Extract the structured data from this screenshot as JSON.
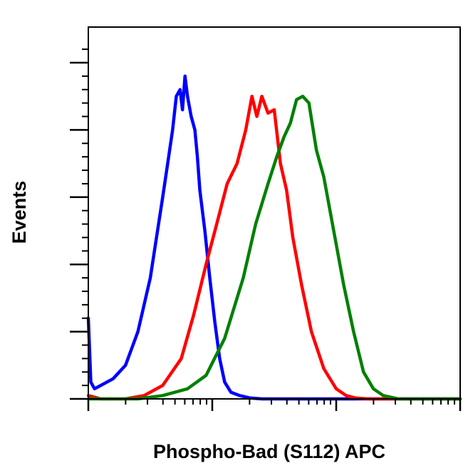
{
  "chart_data": {
    "type": "line",
    "title": "",
    "xlabel": "Phospho-Bad (S112) APC",
    "ylabel": "Events",
    "x_scale": "log",
    "x_decades": 3,
    "xlim": [
      0,
      3
    ],
    "ylim": [
      0,
      100
    ],
    "tick_labels_shown": false,
    "grid": false,
    "legend": "none",
    "series": [
      {
        "color": "#0000ff",
        "x": [
          0.0,
          0.02,
          0.05,
          0.1,
          0.2,
          0.3,
          0.4,
          0.5,
          0.55,
          0.6,
          0.64,
          0.68,
          0.71,
          0.74,
          0.76,
          0.78,
          0.8,
          0.83,
          0.86,
          0.88,
          0.9,
          0.94,
          0.98,
          1.02,
          1.06,
          1.1,
          1.15,
          1.22,
          1.3,
          1.4,
          3.0
        ],
        "y": [
          24,
          5,
          3,
          4,
          6,
          10,
          20,
          36,
          48,
          60,
          70,
          80,
          90,
          92,
          86,
          96,
          90,
          84,
          80,
          72,
          62,
          50,
          36,
          23,
          12,
          5,
          2,
          1,
          0.3,
          0,
          0
        ]
      },
      {
        "color": "#ff0000",
        "x": [
          0.0,
          0.1,
          0.3,
          0.45,
          0.6,
          0.75,
          0.85,
          0.95,
          1.05,
          1.12,
          1.2,
          1.27,
          1.32,
          1.36,
          1.4,
          1.45,
          1.5,
          1.55,
          1.6,
          1.65,
          1.72,
          1.8,
          1.9,
          2.0,
          2.08,
          2.15,
          2.25,
          3.0
        ],
        "y": [
          1,
          0,
          0,
          1,
          4,
          12,
          25,
          40,
          54,
          64,
          70,
          80,
          90,
          84,
          90,
          85,
          86,
          70,
          62,
          48,
          34,
          20,
          9,
          3,
          1,
          0.3,
          0,
          0
        ]
      },
      {
        "color": "#008000",
        "x": [
          0.0,
          0.4,
          0.6,
          0.8,
          0.95,
          1.1,
          1.25,
          1.35,
          1.45,
          1.52,
          1.58,
          1.63,
          1.68,
          1.73,
          1.78,
          1.84,
          1.9,
          1.98,
          2.06,
          2.14,
          2.22,
          2.3,
          2.38,
          2.5,
          3.0
        ],
        "y": [
          0,
          0,
          1,
          3,
          7,
          18,
          36,
          52,
          64,
          72,
          78,
          82,
          89,
          90,
          88,
          74,
          66,
          50,
          34,
          20,
          8,
          3,
          1,
          0,
          0
        ]
      }
    ]
  }
}
